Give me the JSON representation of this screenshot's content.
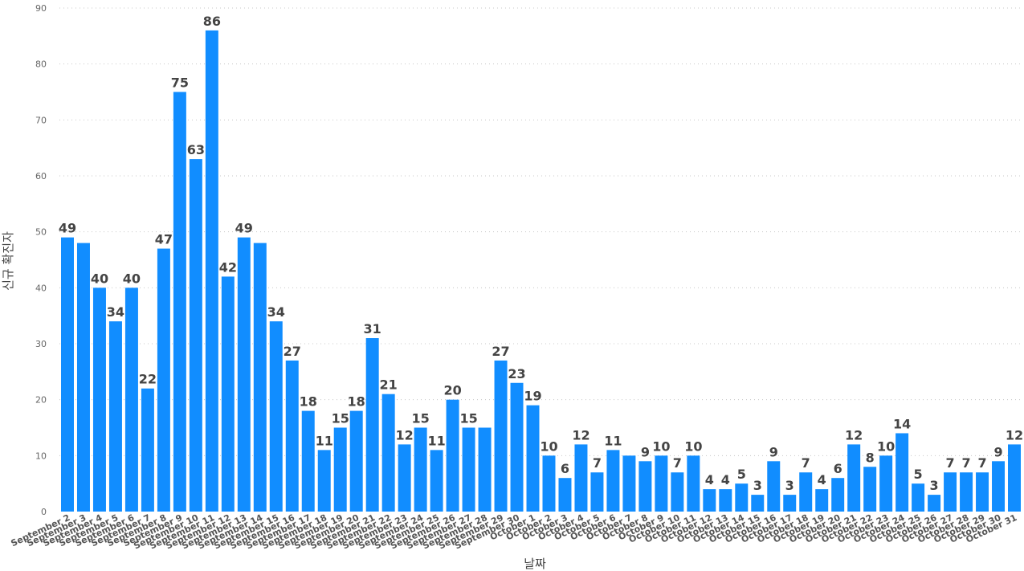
{
  "chart_data": {
    "type": "bar",
    "xlabel": "날짜",
    "ylabel": "신규 확진자",
    "ylim": [
      0,
      90
    ],
    "yticks": [
      0,
      10,
      20,
      30,
      40,
      50,
      60,
      70,
      80,
      90
    ],
    "grid": true,
    "bar_color": "#118dff",
    "categories": [
      "September 2",
      "September 3",
      "September 4",
      "September 5",
      "September 6",
      "September 7",
      "September 8",
      "September 9",
      "September 10",
      "September 11",
      "September 12",
      "September 13",
      "September 14",
      "September 15",
      "September 16",
      "September 17",
      "September 18",
      "September 19",
      "September 20",
      "September 21",
      "September 22",
      "September 23",
      "September 24",
      "September 25",
      "September 26",
      "September 27",
      "September 28",
      "September 29",
      "September 30",
      "October 1",
      "October 2",
      "October 3",
      "October 4",
      "October 5",
      "October 6",
      "October 7",
      "October 8",
      "October 9",
      "October 10",
      "October 11",
      "October 12",
      "October 13",
      "October 14",
      "October 15",
      "October 16",
      "October 17",
      "October 18",
      "October 19",
      "October 20",
      "October 21",
      "October 22",
      "October 23",
      "October 24",
      "October 25",
      "October 26",
      "October 27",
      "October 28",
      "October 29",
      "October 30",
      "October 31"
    ],
    "values": [
      49,
      48,
      40,
      34,
      40,
      22,
      47,
      75,
      63,
      86,
      42,
      49,
      48,
      34,
      27,
      18,
      11,
      15,
      18,
      31,
      21,
      12,
      15,
      11,
      20,
      15,
      15,
      27,
      23,
      19,
      10,
      6,
      12,
      7,
      11,
      10,
      9,
      10,
      7,
      10,
      4,
      4,
      5,
      3,
      9,
      3,
      7,
      4,
      6,
      12,
      8,
      10,
      14,
      5,
      3,
      7,
      7,
      7,
      9,
      12
    ],
    "data_labels": [
      "49",
      "",
      "40",
      "34",
      "40",
      "22",
      "47",
      "75",
      "63",
      "86",
      "42",
      "49",
      "",
      "34",
      "27",
      "18",
      "11",
      "15",
      "18",
      "31",
      "21",
      "12",
      "15",
      "11",
      "20",
      "15",
      "",
      "27",
      "23",
      "19",
      "10",
      "6",
      "12",
      "7",
      "11",
      "",
      "9",
      "10",
      "7",
      "10",
      "4",
      "4",
      "5",
      "3",
      "9",
      "3",
      "7",
      "4",
      "6",
      "12",
      "8",
      "10",
      "14",
      "5",
      "3",
      "7",
      "7",
      "7",
      "9",
      "12"
    ]
  }
}
